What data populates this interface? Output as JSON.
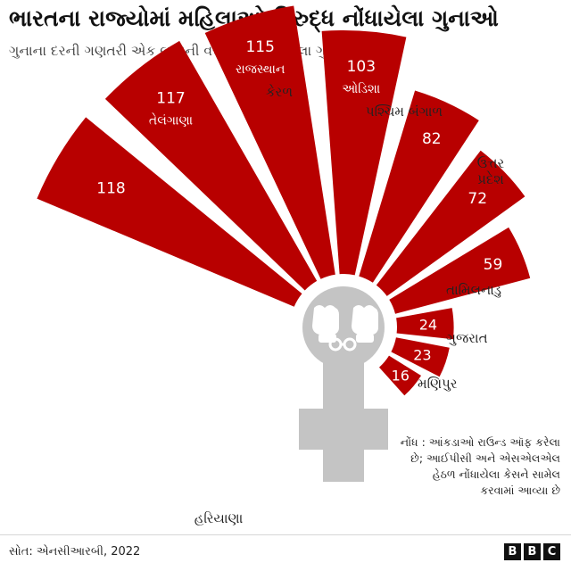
{
  "header": {
    "title": "ભારતના રાજ્યોમાં મહિલાઓ વિરુદ્ધ નોંધાયેલા ગુનાઓ",
    "subtitle": "ગુનાના દરની ગણતરી એક લાખની વસ્તી દીઠ નોંધાયેલા ગુનાના આધારે"
  },
  "note": "નોંધ : આંકડાઓ રાઉન્ડ ઑફ કરેલા છે; આઈપીસી અને એસએલએલ હેઠળ નોંધાયેલા કેસને સામેલ કરવામાં આવ્યા છે",
  "footer": {
    "source": "સોત: એનસીઆરબી, 2022",
    "logo_letters": [
      "B",
      "B",
      "C"
    ]
  },
  "colors": {
    "bar": "#b80000",
    "symbol": "#c4c4c4",
    "label_inside": "#ffffff",
    "label_outside": "#222222"
  },
  "chart_data": {
    "type": "bar",
    "layout": "radial",
    "categories": [
      "હરિયાણા",
      "તેલંગાણા",
      "રાજસ્થાન",
      "ઓડિશા",
      "કેરળ",
      "પશ્ચિમ બંગાળ",
      "ઉત્તર પ્રદેશ",
      "તામિલનાડુ",
      "ગુજરાત",
      "મણિપુર"
    ],
    "values": [
      118,
      117,
      115,
      103,
      82,
      72,
      59,
      24,
      23,
      16
    ],
    "title": "ભારતના રાજ્યોમાં મહિલાઓ વિરુદ્ધ નોંધાયેલા ગુનાઓ",
    "subtitle": "ગુનાના દરની ગણતરી એક લાખની વસ્તી દીઠ નોંધાયેલા ગુનાના આધારે"
  }
}
